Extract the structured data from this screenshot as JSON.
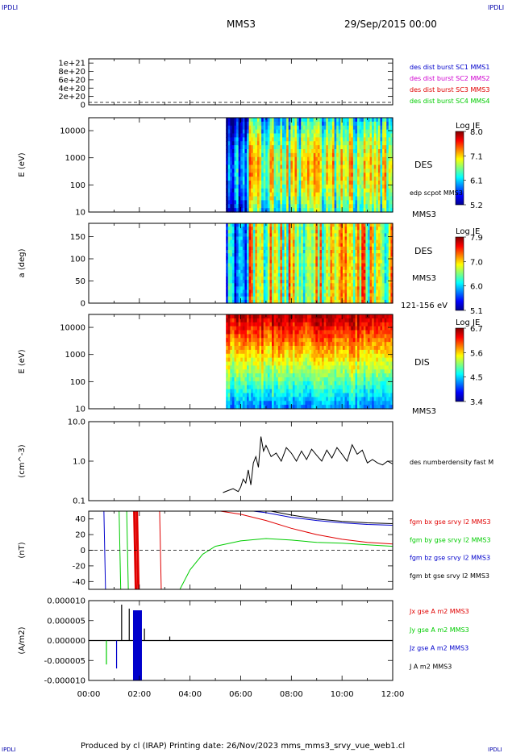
{
  "header": {
    "logo_left": "IPDLI",
    "logo_right": "IPDLI",
    "spacecraft": "MMS3",
    "date_time": "29/Sep/2015 00:00"
  },
  "footer": {
    "text": "Produced by cl (IRAP)   Printing date: 26/Nov/2023   mms_mms3_srvy_vue_web1.cl",
    "logo_left": "IPDLI",
    "logo_right": "IPDLI"
  },
  "time_axis": {
    "start": "00:00",
    "end": "12:00",
    "ticks": [
      "00:00",
      "02:00",
      "04:00",
      "06:00",
      "08:00",
      "10:00",
      "12:00"
    ]
  },
  "colors": {
    "red": "#e00000",
    "green": "#00cc00",
    "blue": "#0000cc",
    "magenta": "#d000d0",
    "black": "#000000"
  },
  "chart_data": [
    {
      "type": "line",
      "panel": "burst",
      "ylabel": "",
      "yticks": [
        "1e+21",
        "8e+20",
        "6e+20",
        "4e+20",
        "2e+20",
        "0"
      ],
      "ylim": [
        0,
        1.1e+21
      ],
      "legend": [
        {
          "name": "des dist burst SC1 MMS1",
          "color": "#0000cc"
        },
        {
          "name": "des dist burst SC2 MMS2",
          "color": "#d000d0"
        },
        {
          "name": "des dist burst SC3 MMS3",
          "color": "#e00000"
        },
        {
          "name": "des dist burst SC4 MMS4",
          "color": "#00cc00"
        }
      ],
      "series": []
    },
    {
      "type": "heatmap",
      "panel": "des_energy",
      "ylabel": "E (eV)",
      "yscale": "log",
      "ylim": [
        10,
        30000
      ],
      "yticks": [
        "10000",
        "1000",
        "100",
        "10"
      ],
      "colorbar": {
        "label": "Log JE",
        "ticks": [
          "8.0",
          "7.1",
          "6.1",
          "5.2"
        ],
        "range": [
          5.2,
          8.0
        ]
      },
      "right_labels": [
        "DES",
        "edp scpot MMS3",
        "MMS3"
      ],
      "data_start_time": "05:25",
      "data_end_time": "12:00"
    },
    {
      "type": "heatmap",
      "panel": "des_pitch",
      "ylabel": "a (deg)",
      "ylim": [
        0,
        180
      ],
      "yticks": [
        "150",
        "100",
        "50",
        "0"
      ],
      "colorbar": {
        "label": "Log JE",
        "ticks": [
          "7.9",
          "7.0",
          "6.0",
          "5.1"
        ],
        "range": [
          5.1,
          7.9
        ]
      },
      "right_labels": [
        "DES",
        "MMS3",
        "121-156 eV"
      ],
      "data_start_time": "05:25",
      "data_end_time": "12:00"
    },
    {
      "type": "heatmap",
      "panel": "dis_energy",
      "ylabel": "E (eV)",
      "yscale": "log",
      "ylim": [
        10,
        30000
      ],
      "yticks": [
        "10000",
        "1000",
        "100",
        "10"
      ],
      "colorbar": {
        "label": "Log JE",
        "ticks": [
          "6.7",
          "5.6",
          "4.5",
          "3.4"
        ],
        "range": [
          3.4,
          6.7
        ]
      },
      "right_labels": [
        "DIS",
        "MMS3"
      ],
      "data_start_time": "05:25",
      "data_end_time": "12:00"
    },
    {
      "type": "line",
      "panel": "density",
      "ylabel": "(cm^-3)",
      "yscale": "log",
      "ylim": [
        0.1,
        10
      ],
      "yticks": [
        "10.0",
        "1.0",
        "0.1"
      ],
      "legend": [
        {
          "name": "des numberdensity fast M",
          "color": "#000000"
        }
      ],
      "series": [
        {
          "color": "#000000",
          "points": [
            [
              5.3,
              0.16
            ],
            [
              5.5,
              0.18
            ],
            [
              5.7,
              0.2
            ],
            [
              5.9,
              0.17
            ],
            [
              6.0,
              0.22
            ],
            [
              6.1,
              0.35
            ],
            [
              6.2,
              0.28
            ],
            [
              6.3,
              0.6
            ],
            [
              6.4,
              0.25
            ],
            [
              6.5,
              0.9
            ],
            [
              6.6,
              1.3
            ],
            [
              6.7,
              0.7
            ],
            [
              6.8,
              4.2
            ],
            [
              6.9,
              1.8
            ],
            [
              7.0,
              2.5
            ],
            [
              7.2,
              1.3
            ],
            [
              7.4,
              1.6
            ],
            [
              7.6,
              1.0
            ],
            [
              7.8,
              2.2
            ],
            [
              8.0,
              1.6
            ],
            [
              8.2,
              1.0
            ],
            [
              8.4,
              1.8
            ],
            [
              8.6,
              1.1
            ],
            [
              8.8,
              2.0
            ],
            [
              9.0,
              1.4
            ],
            [
              9.2,
              1.0
            ],
            [
              9.4,
              1.9
            ],
            [
              9.6,
              1.2
            ],
            [
              9.8,
              2.2
            ],
            [
              10.0,
              1.5
            ],
            [
              10.2,
              1.0
            ],
            [
              10.4,
              2.6
            ],
            [
              10.6,
              1.5
            ],
            [
              10.8,
              1.9
            ],
            [
              11.0,
              0.9
            ],
            [
              11.2,
              1.1
            ],
            [
              11.4,
              0.9
            ],
            [
              11.6,
              0.8
            ],
            [
              11.8,
              1.0
            ],
            [
              12.0,
              0.85
            ]
          ]
        }
      ]
    },
    {
      "type": "line",
      "panel": "fgm",
      "ylabel": "(nT)",
      "ylim": [
        -50,
        50
      ],
      "yticks": [
        "40",
        "20",
        "0",
        "-20",
        "-40"
      ],
      "legend": [
        {
          "name": "fgm bx gse srvy l2 MMS3",
          "color": "#e00000"
        },
        {
          "name": "fgm by gse srvy l2 MMS3",
          "color": "#00cc00"
        },
        {
          "name": "fgm bz gse srvy l2 MMS3",
          "color": "#0000cc"
        },
        {
          "name": "fgm bt gse srvy l2 MMS3",
          "color": "#000000"
        }
      ],
      "series": [
        {
          "color": "#e00000",
          "points": [
            [
              5.2,
              50
            ],
            [
              6.0,
              46
            ],
            [
              7.0,
              38
            ],
            [
              8.0,
              28
            ],
            [
              9.0,
              20
            ],
            [
              10.0,
              14
            ],
            [
              11.0,
              10
            ],
            [
              12.0,
              8
            ]
          ]
        },
        {
          "color": "#00cc00",
          "points": [
            [
              3.6,
              -50
            ],
            [
              4.0,
              -25
            ],
            [
              4.5,
              -5
            ],
            [
              5.0,
              5
            ],
            [
              6.0,
              12
            ],
            [
              7.0,
              15
            ],
            [
              8.0,
              13
            ],
            [
              9.0,
              10
            ],
            [
              10.0,
              9
            ],
            [
              11.0,
              7
            ],
            [
              12.0,
              5
            ]
          ]
        },
        {
          "color": "#0000cc",
          "points": [
            [
              6.5,
              50
            ],
            [
              7.0,
              48
            ],
            [
              8.0,
              42
            ],
            [
              9.0,
              38
            ],
            [
              10.0,
              35
            ],
            [
              11.0,
              33
            ],
            [
              12.0,
              32
            ]
          ]
        },
        {
          "color": "#000000",
          "points": [
            [
              7.2,
              50
            ],
            [
              8.0,
              45
            ],
            [
              9.0,
              40
            ],
            [
              10.0,
              37
            ],
            [
              11.0,
              35
            ],
            [
              12.0,
              34
            ]
          ]
        }
      ]
    },
    {
      "type": "line",
      "panel": "current",
      "ylabel": "(A/m2)",
      "ylim": [
        -1e-05,
        1e-05
      ],
      "yticks": [
        "0.000010",
        "0.000005",
        "0.000000",
        "-0.000005",
        "-0.000010"
      ],
      "legend": [
        {
          "name": "Jx gse A m2 MMS3",
          "color": "#e00000"
        },
        {
          "name": "Jy gse A m2 MMS3",
          "color": "#00cc00"
        },
        {
          "name": "Jz gse A m2 MMS3",
          "color": "#0000cc"
        },
        {
          "name": "J A m2 MMS3",
          "color": "#000000"
        }
      ],
      "series": []
    }
  ]
}
